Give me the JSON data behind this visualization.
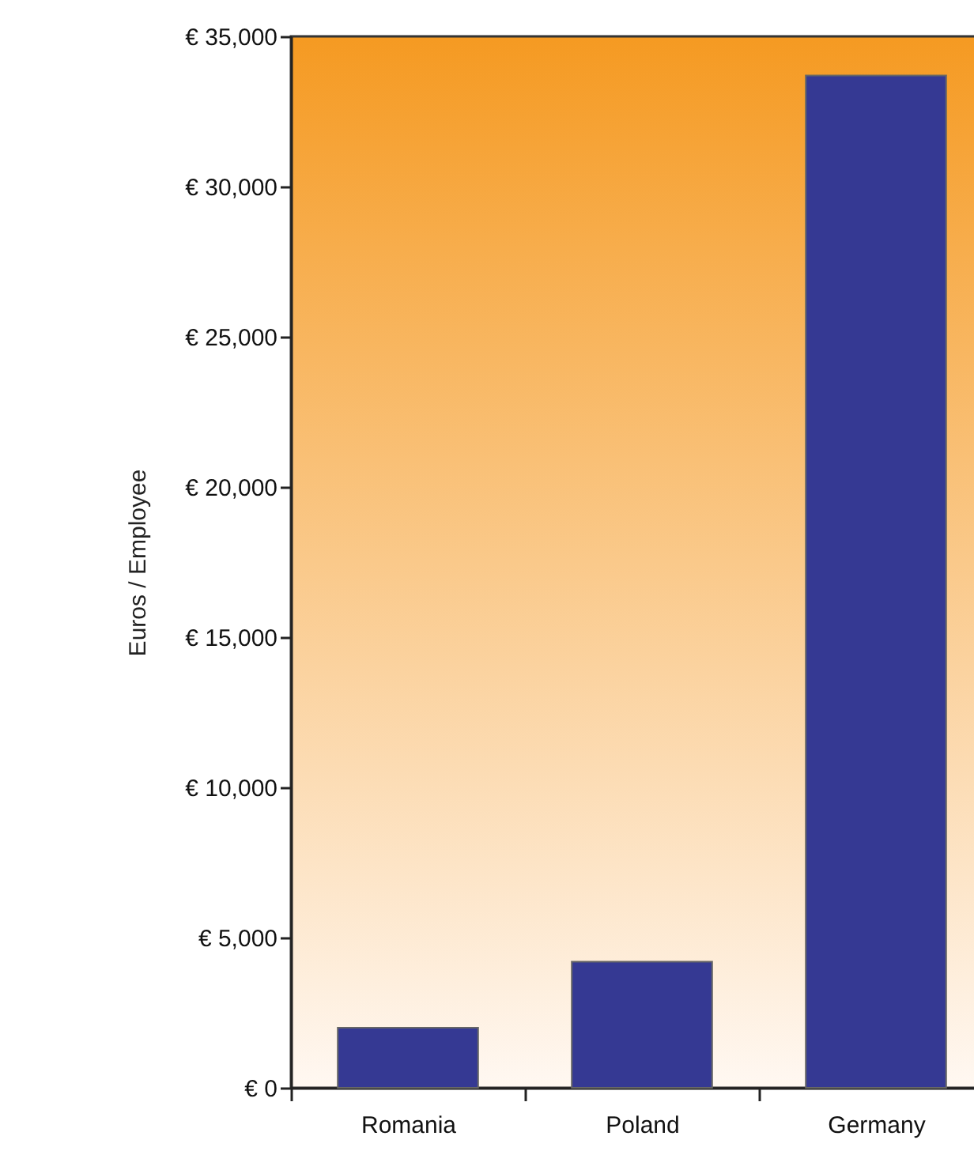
{
  "chart_data": {
    "type": "bar",
    "ylabel": "Euros / Employee",
    "categories": [
      "Romania",
      "Poland",
      "Germany"
    ],
    "values": [
      2000,
      4200,
      33700
    ],
    "color": "#353993",
    "ylim": [
      0,
      35000
    ],
    "yticks": [
      {
        "value": 0,
        "label": "€ 0"
      },
      {
        "value": 5000,
        "label": "€ 5,000"
      },
      {
        "value": 10000,
        "label": "€ 10,000"
      },
      {
        "value": 15000,
        "label": "€ 15,000"
      },
      {
        "value": 20000,
        "label": "€ 20,000"
      },
      {
        "value": 25000,
        "label": "€ 25,000"
      },
      {
        "value": 30000,
        "label": "€ 30,000"
      },
      {
        "value": 35000,
        "label": "€ 35,000"
      }
    ],
    "grid": false
  }
}
